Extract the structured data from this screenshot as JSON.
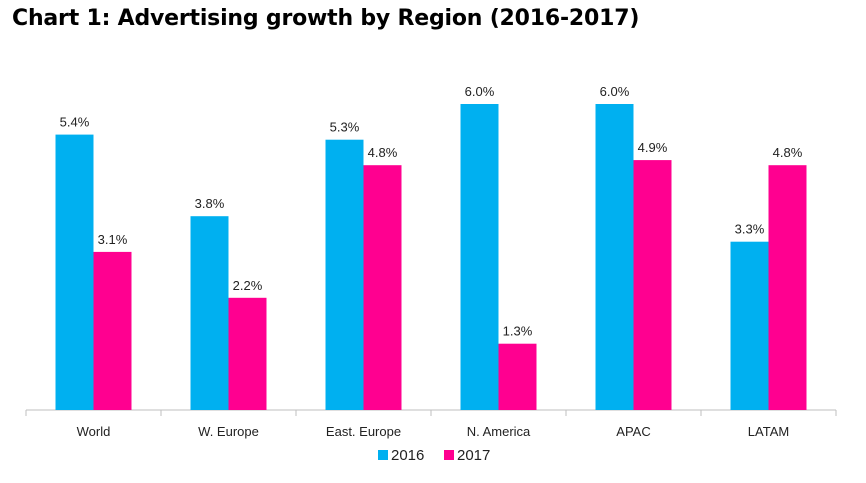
{
  "chart_data": {
    "type": "bar",
    "title": "Chart 1: Advertising growth by Region (2016-2017)",
    "categories": [
      "World",
      "W. Europe",
      "East. Europe",
      "N. America",
      "APAC",
      "LATAM"
    ],
    "series": [
      {
        "name": "2016",
        "values": [
          5.4,
          3.8,
          5.3,
          6.0,
          6.0,
          3.3
        ],
        "labels": [
          "5.4%",
          "3.8%",
          "5.3%",
          "6.0%",
          "6.0%",
          "3.3%"
        ]
      },
      {
        "name": "2017",
        "values": [
          3.1,
          2.2,
          4.8,
          1.3,
          4.9,
          4.8
        ],
        "labels": [
          "3.1%",
          "2.2%",
          "4.8%",
          "1.3%",
          "4.9%",
          "4.8%"
        ]
      }
    ],
    "xlabel": "",
    "ylabel": "",
    "ylim": [
      0,
      6.0
    ],
    "grid": false,
    "legend": "bottom-center"
  },
  "colors": {
    "series_2016": "#00b0f0",
    "series_2017": "#ff0090",
    "axis": "#bfbfbf"
  }
}
